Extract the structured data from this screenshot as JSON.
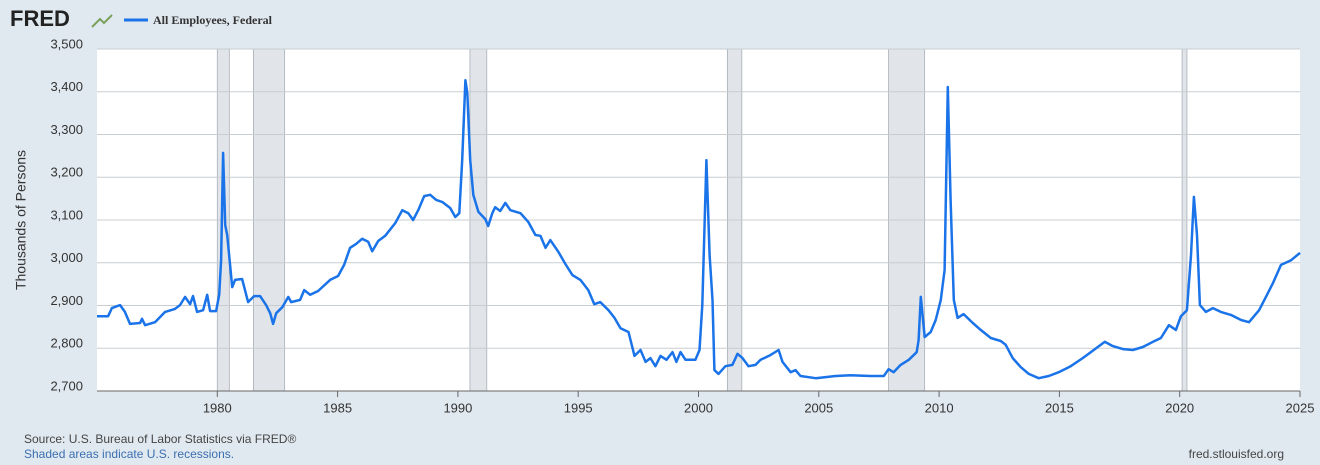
{
  "chart_data": {
    "type": "line",
    "brand": "FRED",
    "y_label": "Thousands of Persons",
    "source": "Source: U.S. Bureau of Labor Statistics via FRED®",
    "note": "Shaded areas indicate U.S. recessions.",
    "url": "fred.stlouisfed.org",
    "xlim": [
      1975,
      2025
    ],
    "xticks": [
      1980,
      1985,
      1990,
      1995,
      2000,
      2005,
      2010,
      2015,
      2020,
      2025
    ],
    "ylim": [
      2700,
      3500
    ],
    "yticks": [
      {
        "value": 2700,
        "label": "2,700"
      },
      {
        "value": 2800,
        "label": "2,800"
      },
      {
        "value": 2900,
        "label": "2,900"
      },
      {
        "value": 3000,
        "label": "3,000"
      },
      {
        "value": 3100,
        "label": "3,100"
      },
      {
        "value": 3200,
        "label": "3,200"
      },
      {
        "value": 3300,
        "label": "3,300"
      },
      {
        "value": 3400,
        "label": "3,400"
      },
      {
        "value": 3500,
        "label": "3,500"
      }
    ],
    "grid": true,
    "recessions": [
      [
        1980.0,
        1980.5
      ],
      [
        1981.5,
        1982.8
      ],
      [
        1990.5,
        1991.2
      ],
      [
        2001.2,
        2001.8
      ],
      [
        2007.9,
        2009.4
      ],
      [
        2020.1,
        2020.3
      ]
    ],
    "recession_color": "#e1e5ea",
    "x": [
      1975.0,
      1975.46,
      1975.62,
      1975.96,
      1976.16,
      1976.37,
      1976.79,
      1976.87,
      1977.0,
      1977.41,
      1977.83,
      1978.24,
      1978.45,
      1978.66,
      1978.87,
      1978.99,
      1979.16,
      1979.41,
      1979.58,
      1979.7,
      1979.95,
      1980.08,
      1980.16,
      1980.24,
      1980.33,
      1980.41,
      1980.62,
      1980.74,
      1981.03,
      1981.28,
      1981.53,
      1981.78,
      1982.03,
      1982.2,
      1982.32,
      1982.45,
      1982.7,
      1982.95,
      1983.07,
      1983.44,
      1983.61,
      1983.86,
      1984.19,
      1984.69,
      1985.02,
      1985.27,
      1985.52,
      1985.77,
      1986.02,
      1986.27,
      1986.44,
      1986.69,
      1986.98,
      1987.4,
      1987.69,
      1987.94,
      1988.14,
      1988.35,
      1988.6,
      1988.85,
      1989.1,
      1989.35,
      1989.68,
      1989.89,
      1990.06,
      1990.18,
      1990.31,
      1990.39,
      1990.51,
      1990.64,
      1990.85,
      1991.14,
      1991.26,
      1991.43,
      1991.55,
      1991.76,
      1991.97,
      1992.18,
      1992.6,
      1992.93,
      1993.22,
      1993.43,
      1993.64,
      1993.84,
      1994.18,
      1994.47,
      1994.76,
      1995.09,
      1995.42,
      1995.67,
      1995.92,
      1996.26,
      1996.51,
      1996.76,
      1997.09,
      1997.34,
      1997.59,
      1997.8,
      1998.0,
      1998.21,
      1998.42,
      1998.67,
      1998.92,
      1999.08,
      1999.25,
      1999.46,
      1999.87,
      2000.04,
      2000.16,
      2000.33,
      2000.46,
      2000.58,
      2000.66,
      2000.83,
      2001.12,
      2001.41,
      2001.62,
      2001.83,
      2002.08,
      2002.37,
      2002.58,
      2002.99,
      2003.33,
      2003.49,
      2003.83,
      2004.03,
      2004.24,
      2004.87,
      2005.7,
      2006.32,
      2007.15,
      2007.7,
      2007.9,
      2008.11,
      2008.4,
      2008.74,
      2009.07,
      2009.15,
      2009.24,
      2009.4,
      2009.65,
      2009.86,
      2010.07,
      2010.23,
      2010.36,
      2010.48,
      2010.61,
      2010.77,
      2011.02,
      2011.4,
      2011.73,
      2012.15,
      2012.56,
      2012.77,
      2013.06,
      2013.39,
      2013.73,
      2014.14,
      2014.56,
      2014.97,
      2015.47,
      2015.97,
      2016.31,
      2016.72,
      2016.89,
      2017.22,
      2017.64,
      2018.05,
      2018.47,
      2018.89,
      2019.22,
      2019.55,
      2019.84,
      2020.05,
      2020.3,
      2020.47,
      2020.59,
      2020.72,
      2020.84,
      2021.09,
      2021.38,
      2021.71,
      2022.13,
      2022.55,
      2022.88,
      2023.3,
      2023.63,
      2023.88,
      2024.21,
      2024.63,
      2025.0
    ],
    "series": [
      {
        "name": "All Employees, Federal",
        "color": "#1a73e8",
        "values": [
          2875,
          2875,
          2894,
          2901,
          2885,
          2857,
          2859,
          2869,
          2854,
          2861,
          2885,
          2892,
          2901,
          2920,
          2903,
          2922,
          2885,
          2889,
          2925,
          2887,
          2887,
          2925,
          3006,
          3257,
          3088,
          3065,
          2943,
          2960,
          2962,
          2908,
          2922,
          2922,
          2901,
          2882,
          2857,
          2882,
          2896,
          2920,
          2908,
          2913,
          2936,
          2925,
          2934,
          2960,
          2969,
          2995,
          3035,
          3044,
          3056,
          3049,
          3027,
          3051,
          3063,
          3093,
          3123,
          3116,
          3100,
          3123,
          3156,
          3159,
          3147,
          3142,
          3128,
          3107,
          3116,
          3240,
          3427,
          3397,
          3240,
          3159,
          3119,
          3102,
          3086,
          3116,
          3130,
          3121,
          3140,
          3123,
          3116,
          3095,
          3065,
          3063,
          3035,
          3053,
          3025,
          2997,
          2971,
          2960,
          2936,
          2903,
          2908,
          2889,
          2871,
          2847,
          2838,
          2782,
          2796,
          2768,
          2777,
          2758,
          2782,
          2773,
          2791,
          2768,
          2791,
          2773,
          2773,
          2796,
          2901,
          3240,
          3018,
          2913,
          2749,
          2740,
          2758,
          2761,
          2787,
          2777,
          2758,
          2761,
          2773,
          2784,
          2796,
          2768,
          2744,
          2749,
          2735,
          2730,
          2735,
          2737,
          2735,
          2735,
          2751,
          2744,
          2761,
          2773,
          2791,
          2819,
          2920,
          2826,
          2838,
          2866,
          2913,
          2983,
          3411,
          3147,
          2913,
          2871,
          2880,
          2859,
          2843,
          2824,
          2817,
          2808,
          2777,
          2756,
          2740,
          2730,
          2735,
          2744,
          2758,
          2777,
          2791,
          2808,
          2815,
          2805,
          2798,
          2796,
          2803,
          2815,
          2824,
          2854,
          2843,
          2875,
          2889,
          3018,
          3154,
          3065,
          2901,
          2885,
          2894,
          2885,
          2878,
          2866,
          2861,
          2889,
          2925,
          2953,
          2995,
          3006,
          3023
        ]
      }
    ]
  }
}
